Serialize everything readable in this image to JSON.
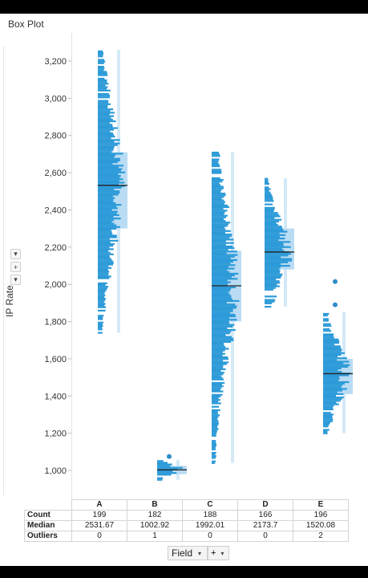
{
  "title": "Box Plot",
  "y_axis_label": "IP Rate",
  "x_field_label": "Field",
  "summary_table": {
    "row_labels": [
      "Count",
      "Median",
      "Outliers"
    ],
    "columns": [
      {
        "category": "A",
        "count": "199",
        "median": "2531.67",
        "outliers": "0"
      },
      {
        "category": "B",
        "count": "182",
        "median": "1002.92",
        "outliers": "1"
      },
      {
        "category": "C",
        "count": "188",
        "median": "1992.01",
        "outliers": "0"
      },
      {
        "category": "D",
        "count": "166",
        "median": "2173.7",
        "outliers": "0"
      },
      {
        "category": "E",
        "count": "196",
        "median": "1520.08",
        "outliers": "2"
      }
    ]
  },
  "colors": {
    "bar": "#2c9ad8",
    "box": "#b9dcf4",
    "whisker": "#d3e9f8",
    "median": "#222222",
    "outlier": "#2f8cc8"
  },
  "chart_data": {
    "type": "box-histogram",
    "title": "Box Plot",
    "ylabel": "IP Rate",
    "xlabel": "Field",
    "categories": [
      "A",
      "B",
      "C",
      "D",
      "E"
    ],
    "ylim": [
      900,
      3300
    ],
    "yticks": [
      1000,
      1200,
      1400,
      1600,
      1800,
      2000,
      2200,
      2400,
      2600,
      2800,
      3000,
      3200
    ],
    "ytick_labels": [
      "1,000",
      "1,200",
      "1,400",
      "1,600",
      "1,800",
      "2,000",
      "2,200",
      "2,400",
      "2,600",
      "2,800",
      "3,000",
      "3,200"
    ],
    "grid": false,
    "series": [
      {
        "category": "A",
        "count": 199,
        "median": 2531.67,
        "q1": 2300,
        "q3": 2710,
        "whisker_low": 1740,
        "whisker_high": 3260,
        "outliers": []
      },
      {
        "category": "B",
        "count": 182,
        "median": 1002.92,
        "q1": 980,
        "q3": 1025,
        "whisker_low": 950,
        "whisker_high": 1055,
        "outliers": [
          1075
        ]
      },
      {
        "category": "C",
        "count": 188,
        "median": 1992.01,
        "q1": 1800,
        "q3": 2180,
        "whisker_low": 1040,
        "whisker_high": 2710,
        "outliers": []
      },
      {
        "category": "D",
        "count": 166,
        "median": 2173.7,
        "q1": 2080,
        "q3": 2300,
        "whisker_low": 1880,
        "whisker_high": 2570,
        "outliers": []
      },
      {
        "category": "E",
        "count": 196,
        "median": 1520.08,
        "q1": 1410,
        "q3": 1600,
        "whisker_low": 1200,
        "whisker_high": 1850,
        "outliers": [
          2015,
          1890
        ]
      }
    ]
  }
}
